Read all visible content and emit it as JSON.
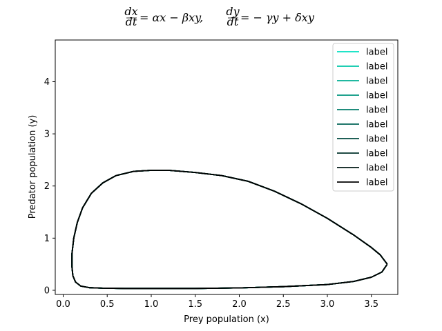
{
  "chart_data": {
    "type": "line",
    "title_parts": [
      "dx",
      "dt",
      "= αx − βxy,",
      "dy",
      "dt",
      "= − γy + δxy"
    ],
    "xlabel": "Prey population (x)",
    "ylabel": "Predator population (y)",
    "xlim": [
      -0.09,
      3.8
    ],
    "ylim": [
      -0.08,
      4.8
    ],
    "xticks": [
      0.0,
      0.5,
      1.0,
      1.5,
      2.0,
      2.5,
      3.0,
      3.5
    ],
    "xtick_labels": [
      "0.0",
      "0.5",
      "1.0",
      "1.5",
      "2.0",
      "2.5",
      "3.0",
      "3.5"
    ],
    "yticks": [
      0,
      1,
      2,
      3,
      4
    ],
    "ytick_labels": [
      "0",
      "1",
      "2",
      "3",
      "4"
    ],
    "grid": false,
    "legend_position": "top-right",
    "series": [
      {
        "name": "label",
        "color": "#00e0c0"
      },
      {
        "name": "label",
        "color": "#00c7a8"
      },
      {
        "name": "label",
        "color": "#00ae93"
      },
      {
        "name": "label",
        "color": "#00957e"
      },
      {
        "name": "label",
        "color": "#007c69"
      },
      {
        "name": "label",
        "color": "#006354"
      },
      {
        "name": "label",
        "color": "#004a3f"
      },
      {
        "name": "label",
        "color": "#00312a"
      },
      {
        "name": "label",
        "color": "#001815"
      },
      {
        "name": "label",
        "color": "#000000"
      }
    ],
    "orbit": {
      "x": [
        3.68,
        3.6,
        3.5,
        3.3,
        3.0,
        2.7,
        2.4,
        2.1,
        1.8,
        1.5,
        1.2,
        1.0,
        0.8,
        0.6,
        0.45,
        0.32,
        0.22,
        0.16,
        0.12,
        0.1,
        0.1,
        0.11,
        0.14,
        0.2,
        0.3,
        0.45,
        0.7,
        1.0,
        1.5,
        2.0,
        2.5,
        3.0,
        3.3,
        3.5,
        3.62,
        3.68
      ],
      "y": [
        0.5,
        0.68,
        0.82,
        1.06,
        1.38,
        1.66,
        1.9,
        2.09,
        2.2,
        2.26,
        2.3,
        2.3,
        2.28,
        2.2,
        2.06,
        1.86,
        1.58,
        1.3,
        1.0,
        0.7,
        0.45,
        0.28,
        0.16,
        0.08,
        0.05,
        0.04,
        0.035,
        0.035,
        0.035,
        0.045,
        0.07,
        0.11,
        0.17,
        0.25,
        0.35,
        0.5
      ]
    }
  }
}
